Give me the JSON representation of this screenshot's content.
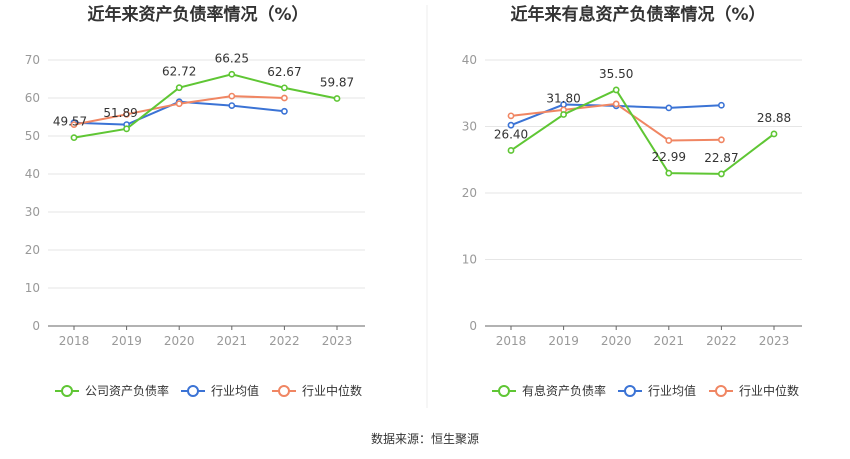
{
  "source_note": "数据来源：恒生聚源",
  "chart_data": [
    {
      "type": "line",
      "title": "近年来资产负债率情况（%）",
      "categories": [
        "2018",
        "2019",
        "2020",
        "2021",
        "2022",
        "2023"
      ],
      "ylim": [
        0,
        70
      ],
      "yticks": [
        "0",
        "10",
        "20",
        "30",
        "40",
        "50",
        "60",
        "70"
      ],
      "legend_position": "bottom",
      "grid": true,
      "series": [
        {
          "name": "公司资产负债率",
          "color": "#5fc634",
          "values": [
            49.57,
            51.89,
            62.72,
            66.25,
            62.67,
            59.87
          ],
          "labels": [
            "49.57",
            "51.89",
            "62.72",
            "66.25",
            "62.67",
            "59.87"
          ]
        },
        {
          "name": "行业均值",
          "color": "#3b73d5",
          "values": [
            53.5,
            53.0,
            59.0,
            58.0,
            56.5,
            null
          ]
        },
        {
          "name": "行业中位数",
          "color": "#f08663",
          "values": [
            53.0,
            55.7,
            58.5,
            60.5,
            60.0,
            null
          ]
        }
      ]
    },
    {
      "type": "line",
      "title": "近年来有息资产负债率情况（%）",
      "categories": [
        "2018",
        "2019",
        "2020",
        "2021",
        "2022",
        "2023"
      ],
      "ylim": [
        0,
        40
      ],
      "yticks": [
        "0",
        "10",
        "20",
        "30",
        "40"
      ],
      "legend_position": "bottom",
      "grid": true,
      "series": [
        {
          "name": "有息资产负债率",
          "color": "#5fc634",
          "values": [
            26.4,
            31.8,
            35.5,
            22.99,
            22.87,
            28.88
          ],
          "labels": [
            "26.40",
            "31.80",
            "35.50",
            "22.99",
            "22.87",
            "28.88"
          ]
        },
        {
          "name": "行业均值",
          "color": "#3b73d5",
          "values": [
            30.2,
            33.3,
            33.1,
            32.8,
            33.2,
            null
          ]
        },
        {
          "name": "行业中位数",
          "color": "#f08663",
          "values": [
            31.6,
            32.5,
            33.4,
            27.9,
            28.0,
            null
          ]
        }
      ]
    }
  ]
}
